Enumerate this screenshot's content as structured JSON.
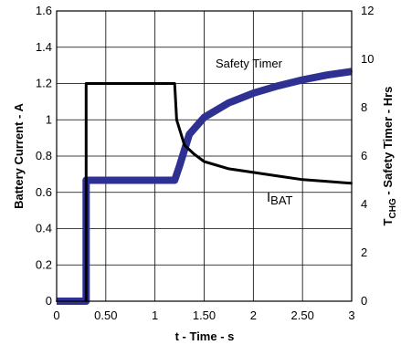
{
  "chart_data": {
    "type": "line",
    "xlabel": "t - Time - s",
    "ylabel_left": "Battery Current - A",
    "ylabel_right": {
      "sym": "T",
      "sub": "CHG",
      "rest": " - Safety Timer - Hrs"
    },
    "xlim": [
      0,
      3
    ],
    "ylim_left": [
      0,
      1.6
    ],
    "ylim_right": [
      0,
      12
    ],
    "x_ticks": [
      {
        "value": 0,
        "label": "0"
      },
      {
        "value": 0.5,
        "label": "0.50"
      },
      {
        "value": 1,
        "label": "1"
      },
      {
        "value": 1.5,
        "label": "1.50"
      },
      {
        "value": 2,
        "label": "2"
      },
      {
        "value": 2.5,
        "label": "2.50"
      },
      {
        "value": 3,
        "label": "3"
      }
    ],
    "left_ticks": [
      {
        "value": 0,
        "label": "0"
      },
      {
        "value": 0.2,
        "label": "0.2"
      },
      {
        "value": 0.4,
        "label": "0.4"
      },
      {
        "value": 0.6,
        "label": "0.6"
      },
      {
        "value": 0.8,
        "label": "0.8"
      },
      {
        "value": 1.0,
        "label": "1"
      },
      {
        "value": 1.2,
        "label": "1.2"
      },
      {
        "value": 1.4,
        "label": "1.4"
      },
      {
        "value": 1.6,
        "label": "1.6"
      }
    ],
    "right_ticks": [
      {
        "value": 0,
        "label": "0"
      },
      {
        "value": 2,
        "label": "2"
      },
      {
        "value": 4,
        "label": "4"
      },
      {
        "value": 6,
        "label": "6"
      },
      {
        "value": 8,
        "label": "8"
      },
      {
        "value": 10,
        "label": "10"
      },
      {
        "value": 12,
        "label": "12"
      }
    ],
    "grid": true,
    "series": [
      {
        "name": "Safety Timer",
        "axis": "right",
        "color": "#2e3192",
        "x": [
          0,
          0.3,
          0.3,
          1.2,
          1.25,
          1.35,
          1.5,
          1.75,
          2.0,
          2.25,
          2.5,
          2.75,
          3.0
        ],
        "y": [
          0,
          0,
          5,
          5,
          5.6,
          6.9,
          7.6,
          8.2,
          8.6,
          8.9,
          9.15,
          9.35,
          9.5
        ]
      },
      {
        "name": "I_BAT",
        "axis": "left",
        "color": "#000000",
        "x": [
          0.3,
          0.3,
          1.2,
          1.22,
          1.3,
          1.4,
          1.5,
          1.75,
          2.0,
          2.25,
          2.5,
          2.75,
          3.0
        ],
        "y": [
          0,
          1.2,
          1.2,
          1.0,
          0.86,
          0.81,
          0.77,
          0.73,
          0.71,
          0.69,
          0.67,
          0.66,
          0.65
        ]
      }
    ],
    "annotations": {
      "safety_timer": "Safety Timer",
      "ibat_main": "I",
      "ibat_sub": "BAT"
    }
  }
}
